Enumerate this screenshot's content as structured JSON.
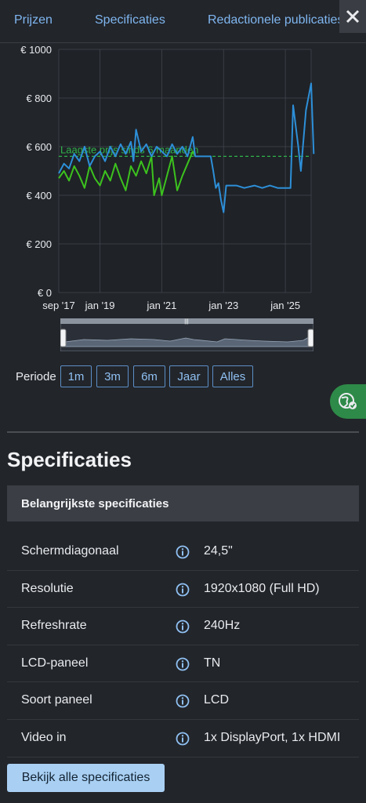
{
  "tabs": [
    "Prijzen",
    "Specificaties",
    "Redactionele publicaties"
  ],
  "colors": {
    "series_low": "#3cc21e",
    "series_price": "#2d8fd8",
    "reference_line": "#2fb34a",
    "accent": "#7fb6f0"
  },
  "chart_data": {
    "type": "line",
    "y_ticks": [
      "€ 1000",
      "€ 800",
      "€ 600",
      "€ 400",
      "€ 200",
      "€ 0"
    ],
    "x_ticks": [
      "sep '17",
      "jan '19",
      "jan '21",
      "jan '23",
      "jan '25"
    ],
    "ylim": [
      0,
      1000
    ],
    "xlim": [
      "2017-09",
      "2025-11"
    ],
    "annotation": "Laagste prijs sinds 6 maanden",
    "reference_value": 560,
    "series": [
      {
        "values": [
          [
            "2017-09",
            490
          ],
          [
            "2017-11",
            530
          ],
          [
            "2018-01",
            510
          ],
          [
            "2018-03",
            570
          ],
          [
            "2018-05",
            540
          ],
          [
            "2018-07",
            600
          ],
          [
            "2018-09",
            520
          ],
          [
            "2018-11",
            560
          ],
          [
            "2019-01",
            580
          ],
          [
            "2019-03",
            540
          ],
          [
            "2019-05",
            600
          ],
          [
            "2019-07",
            560
          ],
          [
            "2019-09",
            610
          ],
          [
            "2019-11",
            570
          ],
          [
            "2020-01",
            620
          ],
          [
            "2020-02",
            540
          ],
          [
            "2020-03",
            670
          ],
          [
            "2020-05",
            580
          ],
          [
            "2020-07",
            610
          ],
          [
            "2020-09",
            560
          ],
          [
            "2020-11",
            600
          ],
          [
            "2021-01",
            580
          ],
          [
            "2021-03",
            560
          ],
          [
            "2021-05",
            610
          ],
          [
            "2021-07",
            570
          ],
          [
            "2021-09",
            600
          ],
          [
            "2021-11",
            560
          ],
          [
            "2022-01",
            640
          ],
          [
            "2022-02",
            560
          ],
          [
            "2022-06",
            560
          ],
          [
            "2022-08",
            560
          ],
          [
            "2022-09",
            500
          ],
          [
            "2022-10",
            430
          ],
          [
            "2022-11",
            450
          ],
          [
            "2022-12",
            380
          ],
          [
            "2023-01",
            330
          ],
          [
            "2023-02",
            440
          ],
          [
            "2023-06",
            440
          ],
          [
            "2023-09",
            430
          ],
          [
            "2024-01",
            440
          ],
          [
            "2024-04",
            430
          ],
          [
            "2024-07",
            440
          ],
          [
            "2024-10",
            430
          ],
          [
            "2025-01",
            430
          ],
          [
            "2025-03",
            430
          ],
          [
            "2025-04",
            770
          ],
          [
            "2025-06",
            600
          ],
          [
            "2025-07",
            500
          ],
          [
            "2025-09",
            750
          ],
          [
            "2025-11",
            860
          ],
          [
            "2025-12",
            570
          ]
        ]
      },
      {
        "values": [
          [
            "2017-09",
            470
          ],
          [
            "2017-11",
            500
          ],
          [
            "2018-01",
            460
          ],
          [
            "2018-03",
            520
          ],
          [
            "2018-05",
            480
          ],
          [
            "2018-07",
            430
          ],
          [
            "2018-09",
            520
          ],
          [
            "2018-11",
            470
          ],
          [
            "2019-01",
            440
          ],
          [
            "2019-03",
            500
          ],
          [
            "2019-05",
            460
          ],
          [
            "2019-07",
            530
          ],
          [
            "2019-09",
            470
          ],
          [
            "2019-11",
            420
          ],
          [
            "2020-01",
            520
          ],
          [
            "2020-03",
            480
          ],
          [
            "2020-05",
            540
          ],
          [
            "2020-07",
            490
          ],
          [
            "2020-09",
            560
          ],
          [
            "2020-10",
            400
          ],
          [
            "2020-12",
            470
          ],
          [
            "2021-01",
            400
          ],
          [
            "2021-03",
            480
          ],
          [
            "2021-05",
            560
          ],
          [
            "2021-07",
            420
          ],
          [
            "2021-09",
            480
          ],
          [
            "2021-11",
            530
          ],
          [
            "2022-01",
            580
          ],
          [
            "2022-02",
            560
          ]
        ]
      }
    ]
  },
  "periode": {
    "label": "Periode",
    "buttons": [
      "1m",
      "3m",
      "6m",
      "Jaar",
      "Alles"
    ]
  },
  "specs": {
    "title": "Specificaties",
    "section": "Belangrijkste specificaties",
    "rows": [
      {
        "label": "Schermdiagonaal",
        "value": "24,5\""
      },
      {
        "label": "Resolutie",
        "value": "1920x1080 (Full HD)"
      },
      {
        "label": "Refreshrate",
        "value": "240Hz"
      },
      {
        "label": "LCD-paneel",
        "value": "TN"
      },
      {
        "label": "Soort paneel",
        "value": "LCD"
      },
      {
        "label": "Video in",
        "value": "1x DisplayPort, 1x HDMI"
      }
    ],
    "all_button": "Bekijk alle specificaties"
  }
}
